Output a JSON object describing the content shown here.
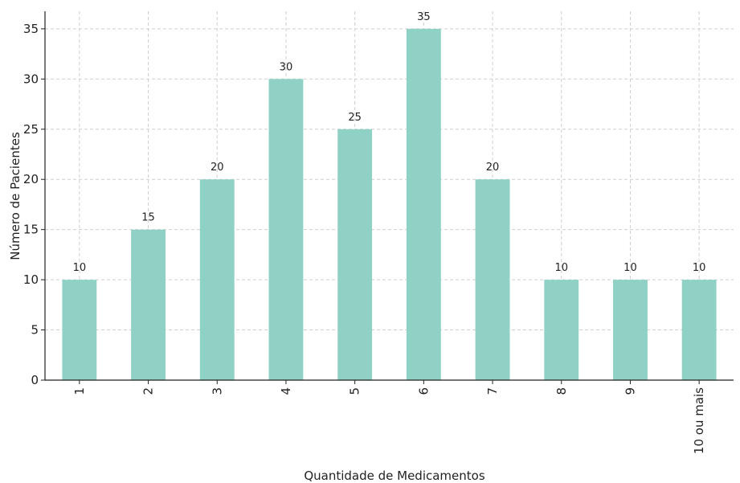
{
  "chart_data": {
    "type": "bar",
    "title": "",
    "xlabel": "Quantidade de Medicamentos",
    "ylabel": "Número de Pacientes",
    "categories": [
      "1",
      "2",
      "3",
      "4",
      "5",
      "6",
      "7",
      "8",
      "9",
      "10 ou mais"
    ],
    "values": [
      10,
      15,
      20,
      30,
      25,
      35,
      20,
      10,
      10,
      10
    ],
    "data_labels": [
      "10",
      "15",
      "20",
      "30",
      "25",
      "35",
      "20",
      "10",
      "10",
      "10"
    ],
    "ylim": [
      0,
      36.75
    ],
    "yticks": [
      0,
      5,
      10,
      15,
      20,
      25,
      30,
      35
    ],
    "ytick_labels": [
      "0",
      "5",
      "10",
      "15",
      "20",
      "25",
      "30",
      "35"
    ],
    "grid": true,
    "legend": "none",
    "bar_color": "#8fd1c4",
    "grid_color": "#cfcfcf"
  }
}
